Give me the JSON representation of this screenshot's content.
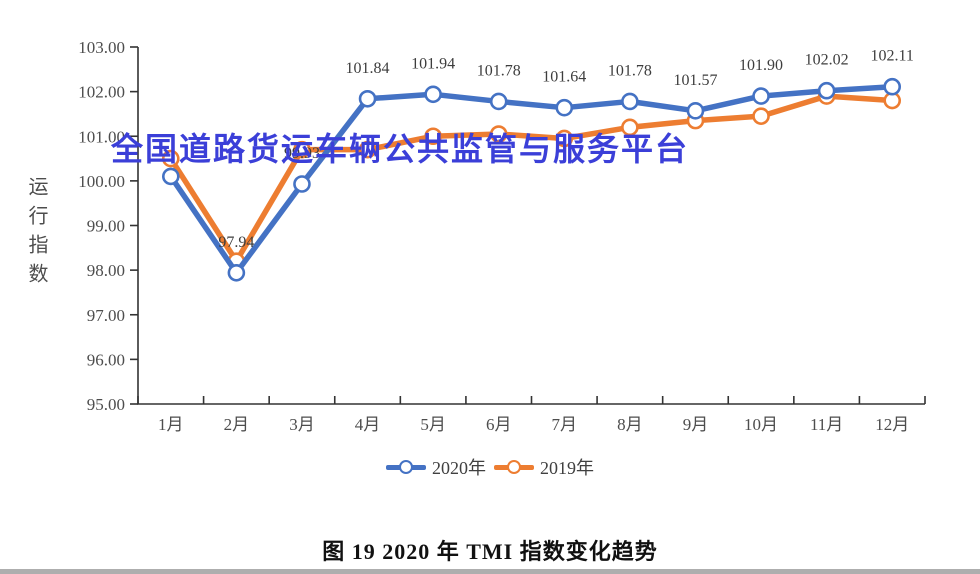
{
  "watermark": "全国道路货运车辆公共监管与服务平台",
  "caption": "图 19  2020 年 TMI 指数变化趋势",
  "legend": {
    "items": [
      {
        "label": "2020年",
        "color": "#4472c4"
      },
      {
        "label": "2019年",
        "color": "#ed7d31"
      }
    ]
  },
  "chart_data": {
    "type": "line",
    "title": "图 19 2020 年 TMI 指数变化趋势",
    "xlabel": "",
    "ylabel": "运行指数",
    "categories": [
      "1月",
      "2月",
      "3月",
      "4月",
      "5月",
      "6月",
      "7月",
      "8月",
      "9月",
      "10月",
      "11月",
      "12月"
    ],
    "ylim": [
      95.0,
      103.0
    ],
    "ytick_step": 1.0,
    "ytick_labels": [
      "95.00",
      "96.00",
      "97.00",
      "98.00",
      "99.00",
      "100.00",
      "101.00",
      "102.00",
      "103.00"
    ],
    "grid": false,
    "legend_position": "bottom",
    "series": [
      {
        "name": "2020年",
        "color": "#4472c4",
        "values": [
          100.1,
          97.94,
          99.93,
          101.84,
          101.94,
          101.78,
          101.64,
          101.78,
          101.57,
          101.9,
          102.02,
          102.11
        ],
        "labels": [
          "",
          "97.94",
          "99.93",
          "101.84",
          "101.94",
          "101.78",
          "101.64",
          "101.78",
          "101.57",
          "101.90",
          "102.02",
          "102.11"
        ],
        "labels_note": "Jan label hidden behind watermark; Mar label partially obscured"
      },
      {
        "name": "2019年",
        "color": "#ed7d31",
        "values": [
          100.5,
          98.2,
          100.7,
          100.7,
          101.0,
          101.05,
          100.95,
          101.2,
          101.35,
          101.45,
          101.9,
          101.8
        ],
        "labels": null,
        "values_estimated": true
      }
    ]
  }
}
